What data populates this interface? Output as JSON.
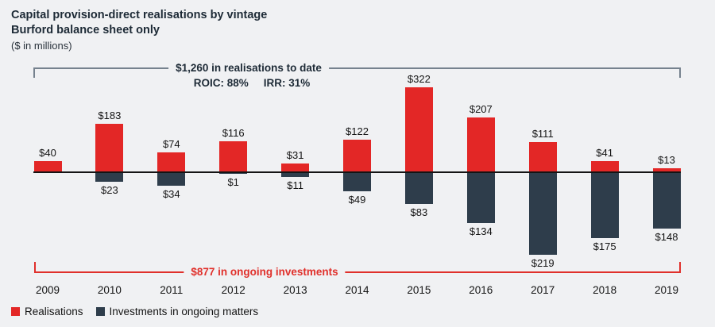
{
  "header": {
    "title_line1": "Capital provision-direct realisations by vintage",
    "title_line2": "Burford balance sheet only",
    "subtitle": "($ in millions)"
  },
  "annotations": {
    "realisations_bracket_label": "$1,260 in realisations to date",
    "roic_label": "ROIC: 88%",
    "irr_label": "IRR: 31%",
    "ongoing_bracket_label": "$877 in ongoing investments"
  },
  "chart_data": {
    "type": "bar",
    "categories": [
      "2009",
      "2010",
      "2011",
      "2012",
      "2013",
      "2014",
      "2015",
      "2016",
      "2017",
      "2018",
      "2019"
    ],
    "series": [
      {
        "name": "Realisations",
        "color": "#e32726",
        "direction": "up",
        "values": [
          40,
          183,
          74,
          116,
          31,
          122,
          322,
          207,
          111,
          41,
          13
        ]
      },
      {
        "name": "Investments in ongoing matters",
        "color": "#2e3d4b",
        "direction": "down",
        "values": [
          null,
          23,
          34,
          1,
          11,
          49,
          83,
          134,
          219,
          175,
          148
        ]
      }
    ],
    "value_prefix": "$",
    "title": "Capital provision-direct realisations by vintage (Burford balance sheet only)",
    "xlabel": "",
    "ylabel": "$ in millions",
    "totals": {
      "realisations_to_date": 1260,
      "ongoing_investments": 877
    },
    "layout_hints": {
      "gridlines": false,
      "zero_baseline": true,
      "value_labels": "outside bar ends",
      "legend_position": "bottom-left"
    }
  },
  "legend": {
    "items": [
      {
        "label": "Realisations",
        "color": "#e32726"
      },
      {
        "label": "Investments in ongoing matters",
        "color": "#2e3d4b"
      }
    ]
  },
  "colors": {
    "realisations_red": "#e32726",
    "investments_navy": "#2e3d4b",
    "bracket_gray": "#76828e",
    "bracket_red": "#e0302b",
    "heading_navy": "#1d2a36",
    "background": "#f0f1f3",
    "axis_black": "#141414"
  }
}
